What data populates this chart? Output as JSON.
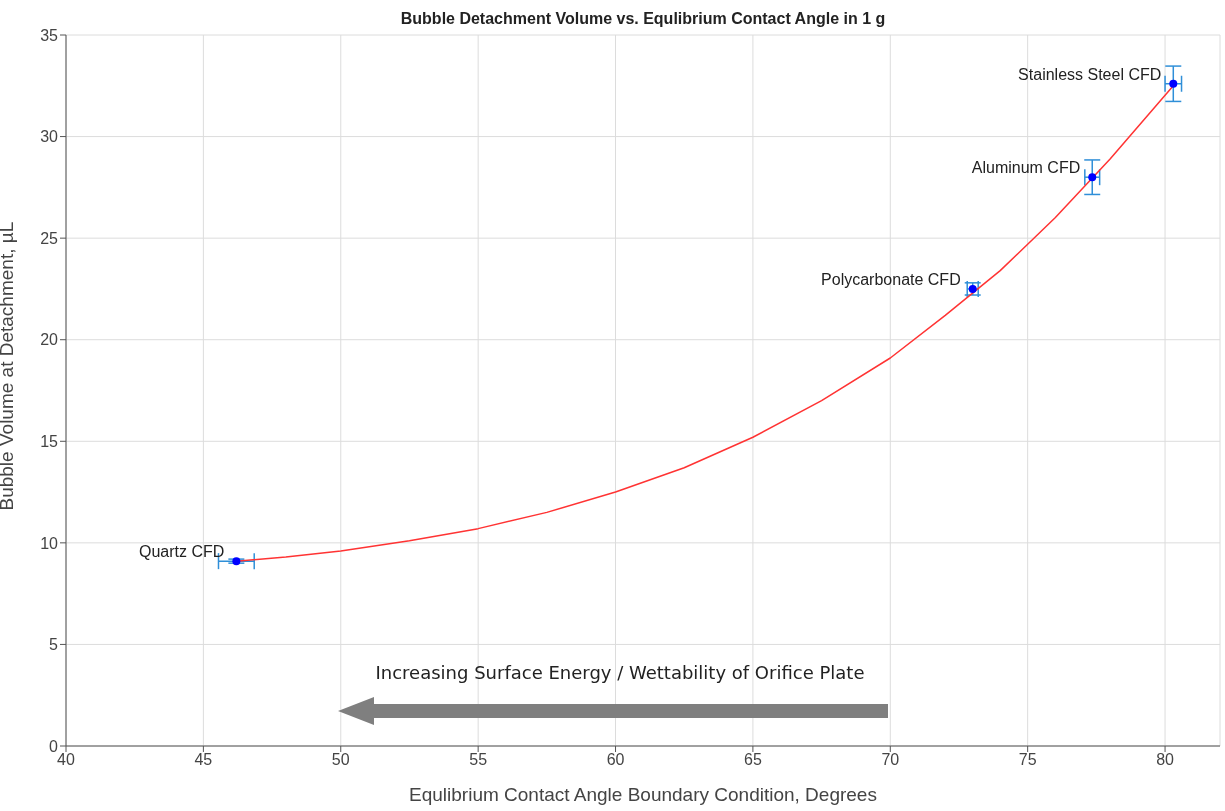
{
  "chart_data": {
    "type": "scatter",
    "title": "Bubble Detachment Volume vs. Equlibrium Contact Angle in 1 g",
    "xlabel": "Equlibrium Contact Angle Boundary Condition, Degrees",
    "ylabel": "Bubble Volume at Detachment, µL",
    "series": [
      {
        "color": "#0000ff",
        "x": [
          46.2,
          73.0,
          77.35,
          80.3
        ],
        "values": [
          9.1,
          22.5,
          28.0,
          32.6
        ],
        "errors": [
          0.1,
          0.3,
          0.85,
          0.87
        ],
        "xerrors": [
          0.65,
          0.2,
          0.27,
          0.3
        ],
        "marker": "circle"
      },
      {
        "type": "line",
        "color": "#ff3333",
        "x": [
          46.2,
          48,
          50,
          52.5,
          55,
          57.5,
          60,
          62.5,
          65,
          67.5,
          70,
          72,
          74,
          76,
          78,
          80.3
        ],
        "values": [
          9.1,
          9.3,
          9.6,
          10.1,
          10.7,
          11.5,
          12.5,
          13.7,
          15.2,
          17.0,
          19.1,
          21.2,
          23.4,
          26.0,
          28.9,
          32.5
        ],
        "marker": "none"
      }
    ],
    "annotations": [
      {
        "text": "Quartz CFD",
        "x": 46.2,
        "y": 9.1
      },
      {
        "text": "Polycarbonate CFD",
        "x": 73.0,
        "y": 22.5
      },
      {
        "text": "Aluminum CFD",
        "x": 77.35,
        "y": 28.0
      },
      {
        "text": "Stainless Steel CFD",
        "x": 80.3,
        "y": 32.6
      },
      "Increasing Surface Energy / Wettability of Orifice Plate"
    ],
    "xlim": [
      40,
      82
    ],
    "xticks": [
      40,
      45,
      50,
      55,
      60,
      65,
      70,
      75,
      80
    ],
    "ylim": [
      0,
      35
    ],
    "yticks": [
      0,
      5,
      10,
      15,
      20,
      25,
      30,
      35
    ],
    "grid": true,
    "legend": false
  }
}
